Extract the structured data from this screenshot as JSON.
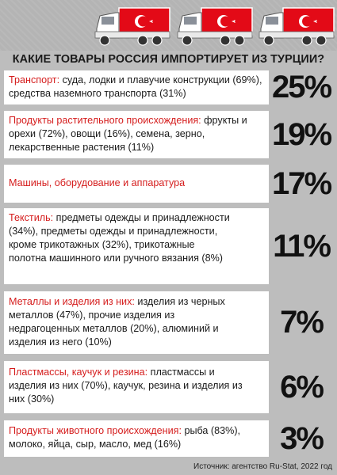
{
  "title": "КАКИЕ ТОВАРЫ РОССИЯ ИМПОРТИРУЕТ ИЗ ТУРЦИИ?",
  "items": [
    {
      "category": "Транспорт:",
      "detail": " суда, лодки и плавучие конструкции (69%), средства наземного транспорта (31%)",
      "percent": "25%"
    },
    {
      "category": "Продукты растительного происхождения:",
      "detail": " фрукты и орехи (72%), овощи (16%), семена, зерно, лекарственные растения (11%)",
      "percent": "19%"
    },
    {
      "category": "Машины, оборудование и аппаратура",
      "detail": "",
      "percent": "17%"
    },
    {
      "category": "Текстиль:",
      "detail": " предметы одежды и принадлежности (34%), предметы одежды и принадлежности, кроме трикотажных (32%), трикотажные полотна машинного или ручного вязания (8%)",
      "percent": "11%"
    },
    {
      "category": "Металлы и изделия из них:",
      "detail": " изделия из черных металлов (47%), прочие изделия из недрагоценных металлов (20%), алюминий и изделия из него (10%)",
      "percent": "7%"
    },
    {
      "category": "Пластмассы, каучук и резина:",
      "detail": " пластмассы и изделия из них (70%), каучук, резина и изделия из них (30%)",
      "percent": "6%"
    },
    {
      "category": "Продукты животного происхождения:",
      "detail": " рыба (83%), молоко, яйца, сыр, масло, мед (16%)",
      "percent": "3%"
    }
  ],
  "source": "Источник: агентство Ru-Stat, 2022 год",
  "icons": [
    "truck-turkey-flag-icon",
    "truck-turkey-flag-icon",
    "truck-turkey-flag-icon"
  ],
  "colors": {
    "accent": "#d51d1d",
    "background": "#bdbdbd",
    "box": "#ffffff",
    "flag": "#e30a17"
  }
}
